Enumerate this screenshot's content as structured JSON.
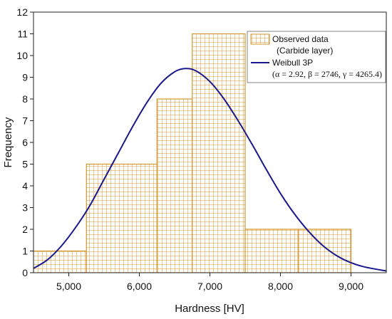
{
  "chart_data": {
    "type": "bar",
    "xlabel": "Hardness [HV]",
    "ylabel": "Frequency",
    "xlim": [
      4500,
      9500
    ],
    "ylim": [
      0,
      12
    ],
    "x_ticks": [
      5000,
      6000,
      7000,
      8000,
      9000
    ],
    "x_tick_labels": [
      "5,000",
      "6,000",
      "7,000",
      "8,000",
      "9,000"
    ],
    "y_ticks": [
      0,
      1,
      2,
      3,
      4,
      5,
      6,
      7,
      8,
      9,
      10,
      11,
      12
    ],
    "grid": false,
    "legend_position": "top-right",
    "histogram": {
      "name": "Observed data",
      "name_sub": "(Carbide layer)",
      "color": "#d4962e",
      "bins": [
        {
          "start": 4500,
          "end": 5250,
          "count": 1
        },
        {
          "start": 5250,
          "end": 6250,
          "count": 5
        },
        {
          "start": 6250,
          "end": 6750,
          "count": 8
        },
        {
          "start": 6750,
          "end": 7500,
          "count": 11
        },
        {
          "start": 7500,
          "end": 8250,
          "count": 2
        },
        {
          "start": 8250,
          "end": 9000,
          "count": 2
        }
      ]
    },
    "curve": {
      "name": "Weibull 3P",
      "params_text": "(α = 2.92, β = 2746, γ = 4265.4)",
      "color": "#1a1a8c",
      "x": [
        4500,
        4700,
        4900,
        5100,
        5300,
        5500,
        5700,
        5900,
        6100,
        6300,
        6500,
        6650,
        6800,
        7000,
        7200,
        7400,
        7600,
        7800,
        8000,
        8200,
        8400,
        8600,
        8800,
        9000,
        9200,
        9500
      ],
      "y": [
        0.2,
        0.6,
        1.25,
        2.1,
        3.1,
        4.3,
        5.5,
        6.7,
        7.8,
        8.7,
        9.25,
        9.4,
        9.3,
        8.8,
        8.0,
        7.0,
        5.9,
        4.75,
        3.65,
        2.7,
        1.9,
        1.25,
        0.78,
        0.46,
        0.26,
        0.08
      ]
    }
  }
}
